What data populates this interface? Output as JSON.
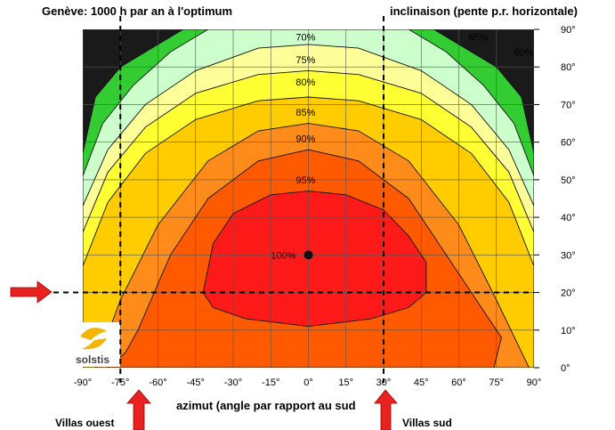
{
  "chart_data": {
    "type": "heatmap",
    "title": "Genève: 1000 h par an à l'optimum",
    "xlabel": "azimut (angle par rapport au sud",
    "ylabel": "inclinaison (pente p.r. horizontale)",
    "x_ticks": [
      "-90°",
      "-75°",
      "-60°",
      "-45°",
      "-30°",
      "-15°",
      "0°",
      "15°",
      "30°",
      "45°",
      "60°",
      "75°",
      "90°"
    ],
    "y_ticks": [
      "0°",
      "10°",
      "20°",
      "30°",
      "40°",
      "50°",
      "60°",
      "70°",
      "80°",
      "90°"
    ],
    "xlim": [
      -90,
      90
    ],
    "ylim": [
      0,
      90
    ],
    "grid": true,
    "optimum": {
      "x": 0,
      "y": 30,
      "label": "100%"
    },
    "contour_levels": [
      {
        "level": 95,
        "label": "95%",
        "color": "#ff1a1a"
      },
      {
        "level": 90,
        "label": "90%",
        "color": "#ff5a00"
      },
      {
        "level": 85,
        "label": "85%",
        "color": "#ff9a1a"
      },
      {
        "level": 80,
        "label": "80%",
        "color": "#ffcc00"
      },
      {
        "level": 75,
        "label": "75%",
        "color": "#ffff66"
      },
      {
        "level": 70,
        "label": "70%",
        "color": "#ffff99"
      },
      {
        "level": 65,
        "label": "65%",
        "color": "#ccffcc"
      },
      {
        "level": 60,
        "label": "60%",
        "color": "#99ff66"
      }
    ],
    "contour_label_65_right": "65%",
    "contour_label_60_right": "60%",
    "reference_lines": [
      {
        "axis": "x",
        "value": -75,
        "label": "Villas ouest"
      },
      {
        "axis": "x",
        "value": 30,
        "label": "Villas sud"
      },
      {
        "axis": "y",
        "value": 20
      }
    ]
  },
  "logo": {
    "text": "solstis"
  },
  "colors": {
    "band_above_95": "#ff1a1a",
    "band_90_95": "#ff5a00",
    "band_85_90": "#ff8c1a",
    "band_80_85": "#ffcc00",
    "band_75_80": "#ffff33",
    "band_70_75": "#ffff99",
    "band_65_70": "#ccffcc",
    "band_60_65": "#33cc33",
    "band_below_60": "#006600",
    "arrow": "#e8231f"
  }
}
